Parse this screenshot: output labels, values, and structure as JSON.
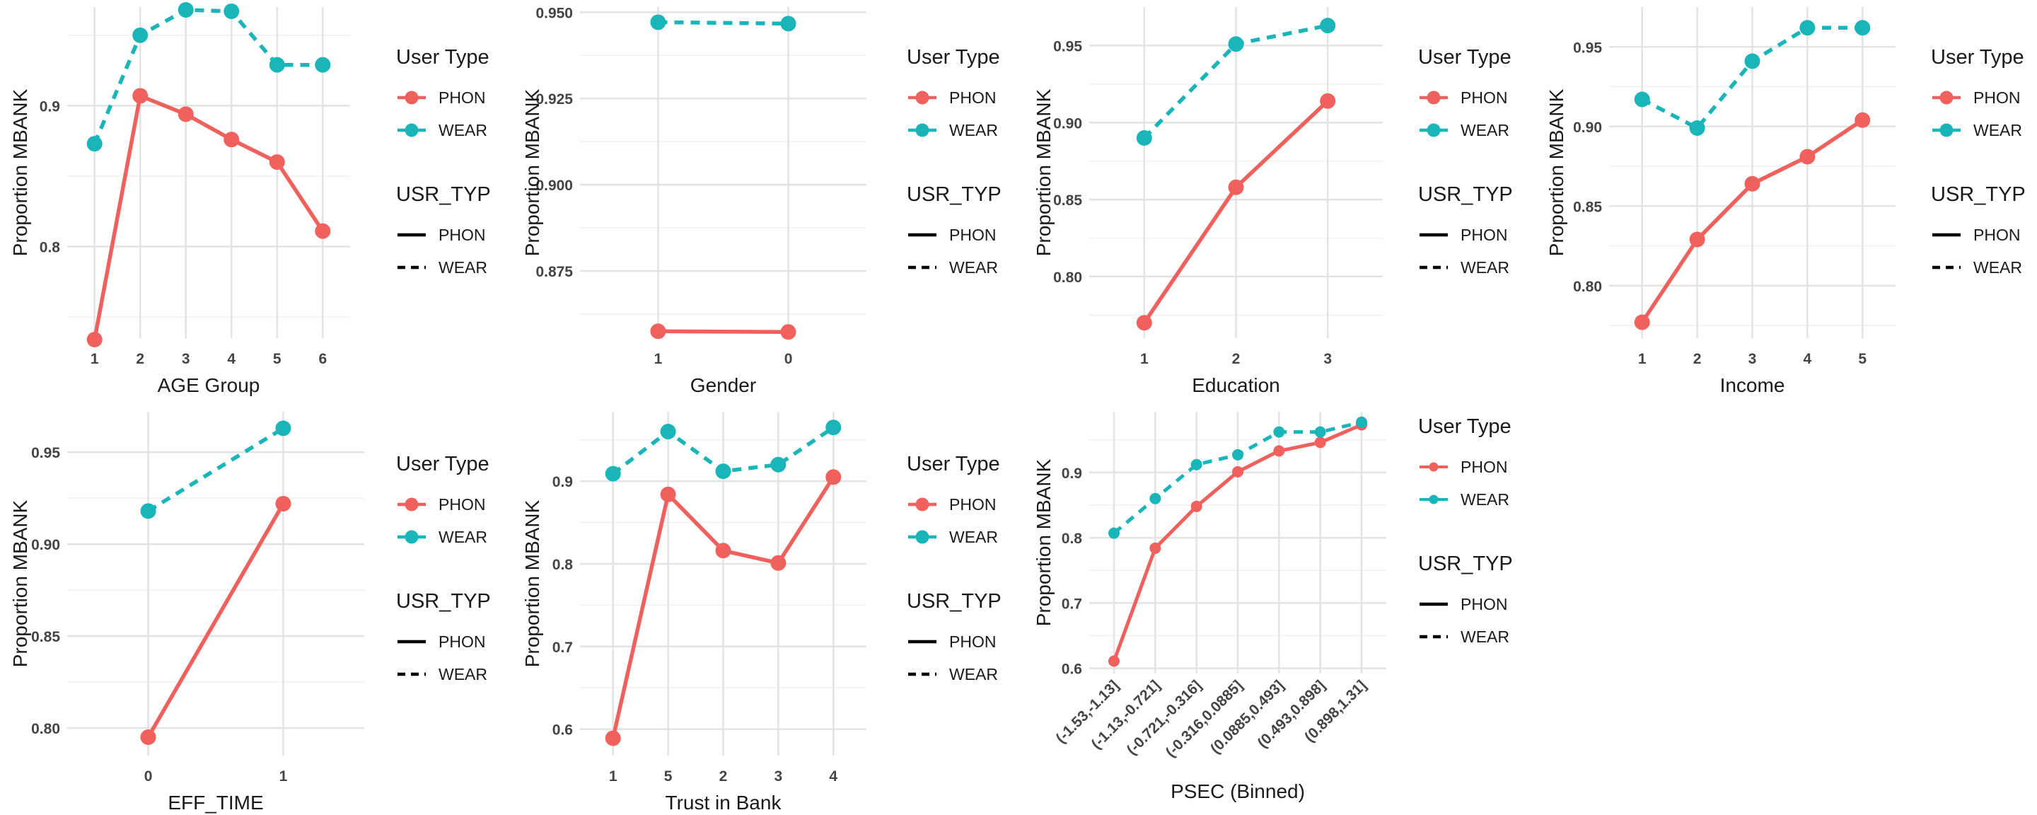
{
  "colors": {
    "PHON": "#F0605D",
    "WEAR": "#19B5B8",
    "grid_major": "#E3E3E3",
    "grid_minor": "#F1F1F1",
    "background": "#ffffff"
  },
  "legend": {
    "color_title": "User Type",
    "linetype_title": "USR_TYP",
    "entries": [
      {
        "label": "PHON",
        "linetype": "solid"
      },
      {
        "label": "WEAR",
        "linetype": "dashed"
      }
    ]
  },
  "chart_data": [
    {
      "type": "line",
      "xlabel": "AGE Group",
      "ylabel": "Proportion MBANK",
      "categories": [
        "1",
        "2",
        "3",
        "4",
        "5",
        "6"
      ],
      "ylim": [
        0.735,
        0.97
      ],
      "yticks": [
        0.8,
        0.9
      ],
      "ytick_labels": [
        "0.8",
        "0.9"
      ],
      "yminor": [
        0.75,
        0.85,
        0.95
      ],
      "series": [
        {
          "name": "PHON",
          "values": [
            0.734,
            0.907,
            0.894,
            0.876,
            0.86,
            0.811
          ]
        },
        {
          "name": "WEAR",
          "values": [
            0.873,
            0.95,
            0.968,
            0.967,
            0.929,
            0.929
          ]
        }
      ]
    },
    {
      "type": "line",
      "xlabel": "Gender",
      "ylabel": "Proportion MBANK",
      "categories": [
        "1",
        "0"
      ],
      "ylim": [
        0.8555,
        0.9515
      ],
      "yticks": [
        0.875,
        0.9,
        0.925,
        0.95
      ],
      "ytick_labels": [
        "0.875",
        "0.900",
        "0.925",
        "0.950"
      ],
      "yminor": [
        0.8625,
        0.8875,
        0.9125,
        0.9375
      ],
      "series": [
        {
          "name": "PHON",
          "values": [
            0.8575,
            0.8573
          ]
        },
        {
          "name": "WEAR",
          "values": [
            0.9471,
            0.9467
          ]
        }
      ]
    },
    {
      "type": "line",
      "xlabel": "Education",
      "ylabel": "Proportion MBANK",
      "categories": [
        "1",
        "2",
        "3"
      ],
      "ylim": [
        0.76,
        0.975
      ],
      "yticks": [
        0.8,
        0.85,
        0.9,
        0.95
      ],
      "ytick_labels": [
        "0.80",
        "0.85",
        "0.90",
        "0.95"
      ],
      "yminor": [
        0.775,
        0.825,
        0.875,
        0.925
      ],
      "series": [
        {
          "name": "PHON",
          "values": [
            0.77,
            0.858,
            0.914
          ]
        },
        {
          "name": "WEAR",
          "values": [
            0.89,
            0.951,
            0.963
          ]
        }
      ]
    },
    {
      "type": "line",
      "xlabel": "Income",
      "ylabel": "Proportion MBANK",
      "categories": [
        "1",
        "2",
        "3",
        "4",
        "5"
      ],
      "ylim": [
        0.767,
        0.975
      ],
      "yticks": [
        0.8,
        0.85,
        0.9,
        0.95
      ],
      "ytick_labels": [
        "0.80",
        "0.85",
        "0.90",
        "0.95"
      ],
      "yminor": [
        0.775,
        0.825,
        0.875,
        0.925
      ],
      "series": [
        {
          "name": "PHON",
          "values": [
            0.777,
            0.829,
            0.864,
            0.881,
            0.904
          ]
        },
        {
          "name": "WEAR",
          "values": [
            0.917,
            0.899,
            0.941,
            0.962,
            0.962
          ]
        }
      ]
    },
    {
      "type": "line",
      "xlabel": "EFF_TIME",
      "ylabel": "Proportion MBANK",
      "categories": [
        "0",
        "1"
      ],
      "ylim": [
        0.785,
        0.972
      ],
      "yticks": [
        0.8,
        0.85,
        0.9,
        0.95
      ],
      "ytick_labels": [
        "0.80",
        "0.85",
        "0.90",
        "0.95"
      ],
      "yminor": [
        0.825,
        0.875,
        0.925
      ],
      "series": [
        {
          "name": "PHON",
          "values": [
            0.795,
            0.922
          ]
        },
        {
          "name": "WEAR",
          "values": [
            0.918,
            0.963
          ]
        }
      ]
    },
    {
      "type": "line",
      "xlabel": "Trust in Bank",
      "ylabel": "Proportion MBANK",
      "categories": [
        "1",
        "5",
        "2",
        "3",
        "4"
      ],
      "ylim": [
        0.568,
        0.984
      ],
      "yticks": [
        0.6,
        0.7,
        0.8,
        0.9
      ],
      "ytick_labels": [
        "0.6",
        "0.7",
        "0.8",
        "0.9"
      ],
      "yminor": [
        0.65,
        0.75,
        0.85,
        0.95
      ],
      "series": [
        {
          "name": "PHON",
          "values": [
            0.589,
            0.884,
            0.816,
            0.801,
            0.905
          ]
        },
        {
          "name": "WEAR",
          "values": [
            0.909,
            0.96,
            0.912,
            0.92,
            0.965
          ]
        }
      ]
    },
    {
      "type": "line",
      "xlabel": "PSEC (Binned)",
      "ylabel": "Proportion MBANK",
      "categories": [
        "(-1.53,-1.13]",
        "(-1.13,-0.721]",
        "(-0.721,-0.316]",
        "(-0.316,0.0885]",
        "(0.0885,0.493]",
        "(0.493,0.898]",
        "(0.898,1.31]"
      ],
      "ylim": [
        0.592,
        0.993
      ],
      "yticks": [
        0.6,
        0.7,
        0.8,
        0.9
      ],
      "ytick_labels": [
        "0.6",
        "0.7",
        "0.8",
        "0.9"
      ],
      "yminor": [
        0.65,
        0.75,
        0.85,
        0.95
      ],
      "series": [
        {
          "name": "PHON",
          "values": [
            0.611,
            0.784,
            0.848,
            0.901,
            0.933,
            0.946,
            0.973
          ]
        },
        {
          "name": "WEAR",
          "values": [
            0.807,
            0.86,
            0.912,
            0.927,
            0.962,
            0.962,
            0.977
          ]
        }
      ]
    }
  ]
}
